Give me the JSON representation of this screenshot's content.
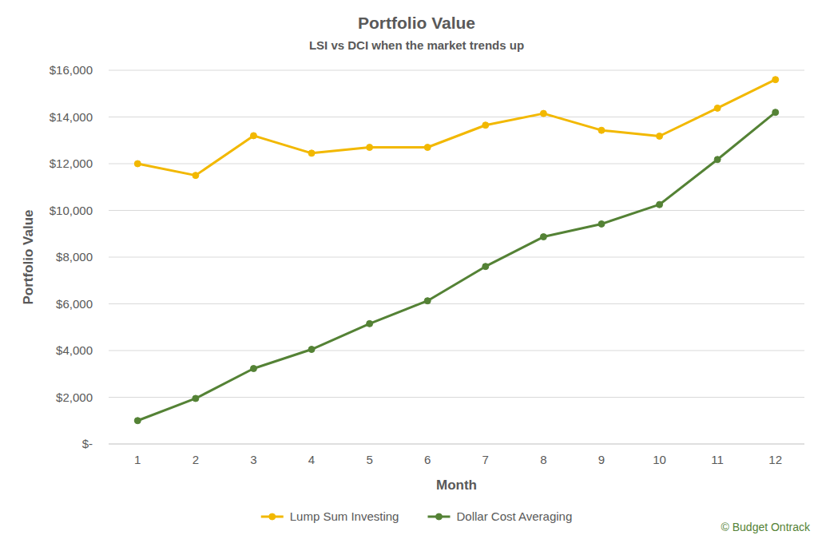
{
  "chart_data": {
    "type": "line",
    "title": "Portfolio Value",
    "subtitle": "LSI vs DCI when the market trends up",
    "x_label": "Month",
    "y_label": "Portfolio Value",
    "categories": [
      "1",
      "2",
      "3",
      "4",
      "5",
      "6",
      "7",
      "8",
      "9",
      "10",
      "11",
      "12"
    ],
    "series": [
      {
        "name": "Lump Sum Investing",
        "color": "#f2b800",
        "marker": "circle",
        "values": [
          12000,
          11500,
          13200,
          12450,
          12700,
          12700,
          13650,
          14150,
          13430,
          13180,
          14380,
          15600
        ]
      },
      {
        "name": "Dollar Cost Averaging",
        "color": "#548235",
        "marker": "circle",
        "values": [
          1000,
          1950,
          3230,
          4050,
          5150,
          6130,
          7600,
          8870,
          9420,
          10250,
          12180,
          14200
        ]
      }
    ],
    "ylim": [
      0,
      16000
    ],
    "yticks": [
      {
        "value": 0,
        "label": "$-"
      },
      {
        "value": 2000,
        "label": "$2,000"
      },
      {
        "value": 4000,
        "label": "$4,000"
      },
      {
        "value": 6000,
        "label": "$6,000"
      },
      {
        "value": 8000,
        "label": "$8,000"
      },
      {
        "value": 10000,
        "label": "$10,000"
      },
      {
        "value": 12000,
        "label": "$12,000"
      },
      {
        "value": 14000,
        "label": "$14,000"
      },
      {
        "value": 16000,
        "label": "$16,000"
      }
    ],
    "grid": true,
    "legend": "bottom",
    "annotations": [
      "© Budget Ontrack"
    ]
  }
}
